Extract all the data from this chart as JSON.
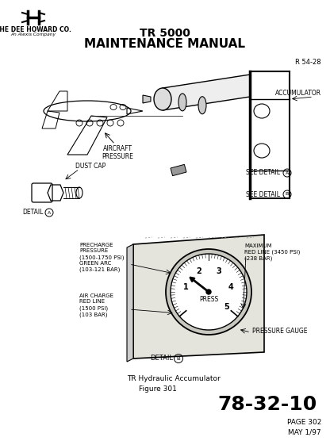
{
  "bg_color": "#ffffff",
  "title_line1": "TR 5000",
  "title_line2": "MAINTENANCE MANUAL",
  "company_name": "THE DEE HOWARD CO.",
  "company_sub": "An Alexis Company",
  "ref_code": "R 54-28",
  "figure_caption_line1": "TR Hydraulic Accumulator",
  "figure_caption_line2": "Figure 301",
  "page_code": "78-32-10",
  "page_num": "PAGE 302",
  "date": "MAY 1/97",
  "label_aircraft_pressure": "AIRCRAFT\nPRESSURE",
  "label_accumulator": "ACCUMULATOR",
  "label_dust_cap": "DUST CAP",
  "label_precharge": "PRECHARGE\nPRESSURE\n(1500-1750 PSI)\nGREEN ARC\n(103-121 BAR)",
  "label_max_redline": "MAXIMUM\nRED LINE (3450 PSI)\n(238 BAR)",
  "label_air_charge": "AIR CHARGE\nRED LINE\n(1500 PSI)\n(103 BAR)",
  "label_pressure_gauge": "PRESSURE GAUGE",
  "label_see_detail_a": "SEE DETAIL",
  "label_see_detail_b": "SEE DETAIL",
  "label_detail_a_text": "DETAIL",
  "label_detail_b_text": "DETAIL",
  "press_text": "PRESS"
}
